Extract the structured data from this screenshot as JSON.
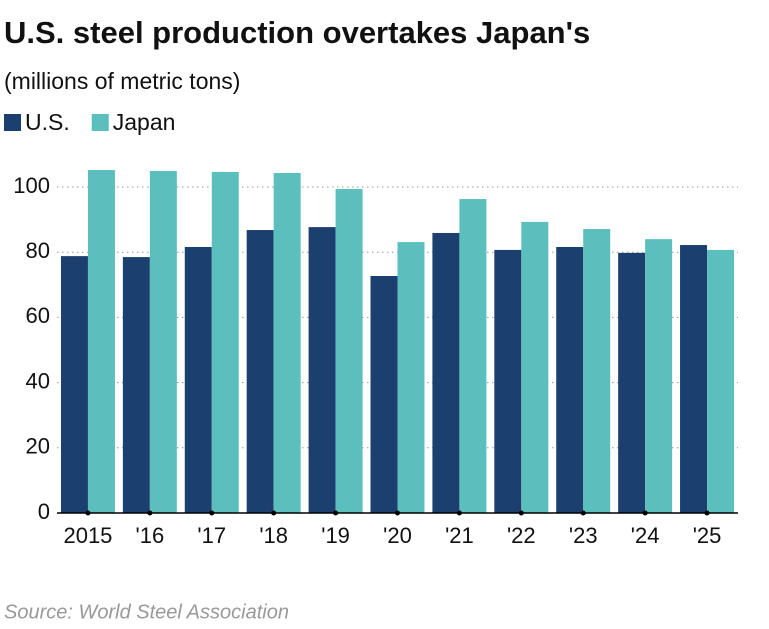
{
  "chart_data": {
    "type": "bar",
    "title": "U.S. steel production overtakes Japan's",
    "subtitle": "(millions of metric tons)",
    "source": "Source: World Steel Association",
    "categories": [
      "2015",
      "'16",
      "'17",
      "'18",
      "'19",
      "'20",
      "'21",
      "'22",
      "'23",
      "'24",
      "'25"
    ],
    "series": [
      {
        "name": "U.S.",
        "color": "#1b4070",
        "values": [
          78.8,
          78.5,
          81.6,
          86.8,
          87.7,
          72.7,
          85.9,
          80.7,
          81.6,
          79.8,
          82.2
        ]
      },
      {
        "name": "Japan",
        "color": "#5bbfbd",
        "values": [
          105.2,
          104.9,
          104.6,
          104.3,
          99.4,
          83.1,
          96.3,
          89.3,
          87.1,
          84.0,
          80.7
        ]
      }
    ],
    "ylim": [
      0,
      100
    ],
    "yticks": [
      0,
      20,
      40,
      60,
      80,
      100
    ],
    "grid": true,
    "legend": "top-left"
  }
}
